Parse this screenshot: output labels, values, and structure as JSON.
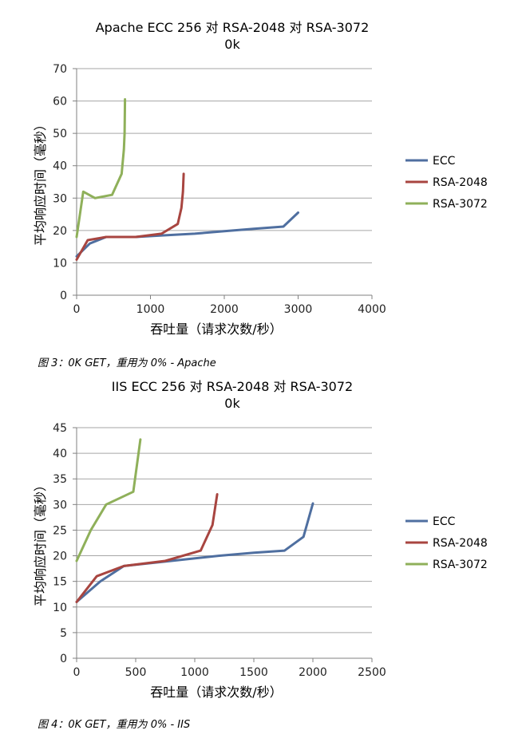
{
  "captions": {
    "fig3": "图 3：0K GET，重用为 0% - Apache",
    "fig4": "图 4：0K GET，重用为 0% - IIS"
  },
  "colors": {
    "ECC": "#4f6fa0",
    "RSA-2048": "#a84540",
    "RSA-3072": "#8fb05a",
    "grid": "#a6a6a6",
    "axis": "#808080"
  },
  "chart_data": [
    {
      "type": "line",
      "title": "Apache ECC 256 对 RSA-2048 对 RSA-3072",
      "subtitle": "0k",
      "xlabel": "吞吐量（请求次数/秒）",
      "ylabel": "平均响应时间（毫秒）",
      "xlim": [
        0,
        4000
      ],
      "ylim": [
        0,
        70
      ],
      "xticks": [
        0,
        1000,
        2000,
        3000,
        4000
      ],
      "yticks": [
        0,
        10,
        20,
        30,
        40,
        50,
        60,
        70
      ],
      "grid": true,
      "legend": "right",
      "series": [
        {
          "name": "ECC",
          "x": [
            0,
            180,
            400,
            800,
            1200,
            1600,
            2000,
            2400,
            2800,
            3000
          ],
          "y": [
            12,
            16,
            18,
            18,
            18.5,
            19,
            19.8,
            20.5,
            21.2,
            25.5
          ]
        },
        {
          "name": "RSA-2048",
          "x": [
            0,
            150,
            400,
            800,
            1150,
            1370,
            1420,
            1440,
            1450
          ],
          "y": [
            11,
            17,
            18,
            18,
            19,
            22,
            27,
            32,
            37.5
          ]
        },
        {
          "name": "RSA-3072",
          "x": [
            0,
            90,
            250,
            480,
            610,
            640,
            650,
            655
          ],
          "y": [
            18,
            32,
            30,
            31,
            37.5,
            45,
            50,
            60.5
          ]
        }
      ]
    },
    {
      "type": "line",
      "title": "IIS ECC 256 对 RSA-2048 对 RSA-3072",
      "subtitle": "0k",
      "xlabel": "吞吐量（请求次数/秒）",
      "ylabel": "平均响应时间（毫秒）",
      "xlim": [
        0,
        2500
      ],
      "ylim": [
        0,
        45
      ],
      "xticks": [
        0,
        500,
        1000,
        1500,
        2000,
        2500
      ],
      "yticks": [
        0,
        5,
        10,
        15,
        20,
        25,
        30,
        35,
        40,
        45
      ],
      "grid": true,
      "legend": "right",
      "series": [
        {
          "name": "ECC",
          "x": [
            0,
            200,
            400,
            800,
            1200,
            1500,
            1760,
            1920,
            2000
          ],
          "y": [
            11,
            15,
            18,
            19,
            20,
            20.6,
            21,
            23.7,
            30.2
          ]
        },
        {
          "name": "RSA-2048",
          "x": [
            0,
            170,
            400,
            750,
            1050,
            1150,
            1190
          ],
          "y": [
            11,
            16,
            18,
            19,
            21,
            26,
            32
          ]
        },
        {
          "name": "RSA-3072",
          "x": [
            0,
            120,
            250,
            480,
            540
          ],
          "y": [
            19,
            25,
            30,
            32.5,
            42.7
          ]
        }
      ]
    }
  ]
}
